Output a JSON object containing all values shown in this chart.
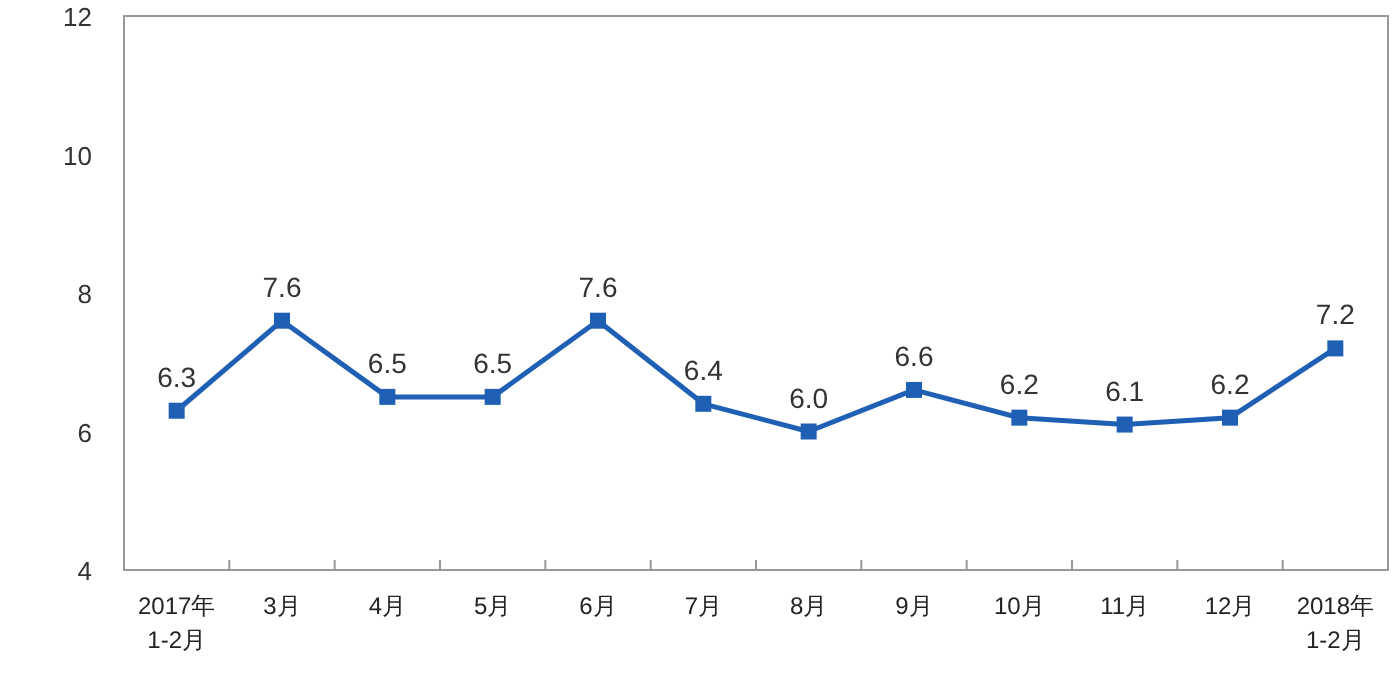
{
  "chart_data": {
    "type": "line",
    "categories": [
      "2017年\n1-2月",
      "3月",
      "4月",
      "5月",
      "6月",
      "7月",
      "8月",
      "9月",
      "10月",
      "11月",
      "12月",
      "2018年\n1-2月"
    ],
    "series": [
      {
        "color": "#1f5fb4",
        "values": [
          6.3,
          7.6,
          6.5,
          6.5,
          7.6,
          6.4,
          6.0,
          6.6,
          6.2,
          6.1,
          6.2,
          7.2
        ],
        "value_labels": [
          "6.3",
          "7.6",
          "6.5",
          "6.5",
          "7.6",
          "6.4",
          "6.0",
          "6.6",
          "6.2",
          "6.1",
          "6.2",
          "7.2"
        ]
      }
    ],
    "ylim": [
      4,
      12
    ],
    "yticks": [
      4,
      6,
      8,
      10,
      12
    ],
    "grid": false,
    "marker": "square",
    "line_style": "solid"
  }
}
